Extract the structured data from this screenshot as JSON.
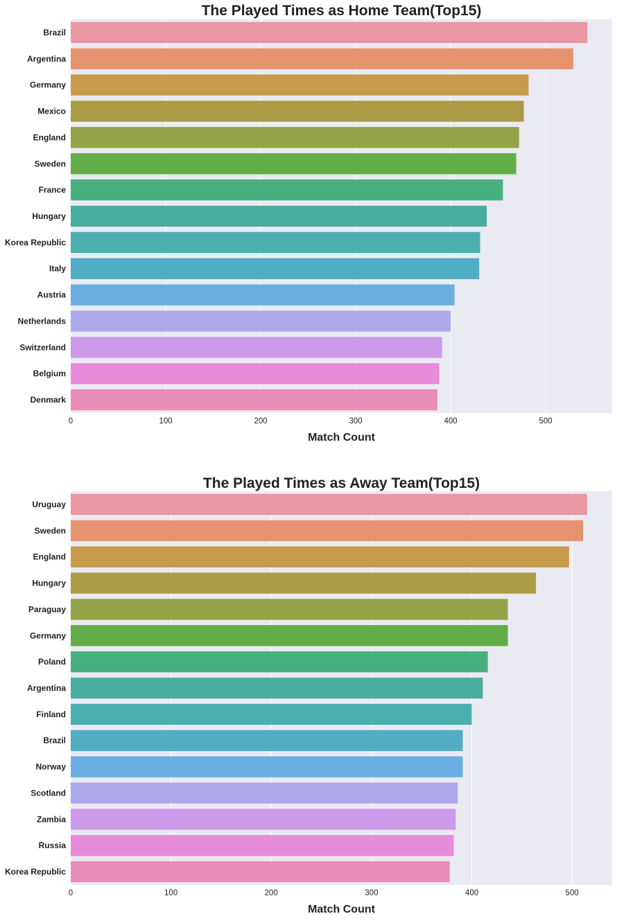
{
  "chart_data": [
    {
      "type": "bar",
      "orientation": "horizontal",
      "title": "The Played Times as Home Team(Top15)",
      "xlabel": "Match Count",
      "ylabel": "",
      "xlim": [
        0,
        570
      ],
      "xticks": [
        "0",
        "100",
        "200",
        "300",
        "400",
        "500"
      ],
      "grid": true,
      "categories": [
        "Brazil",
        "Argentina",
        "Germany",
        "Mexico",
        "England",
        "Sweden",
        "France",
        "Hungary",
        "Korea Republic",
        "Italy",
        "Austria",
        "Netherlands",
        "Switzerland",
        "Belgium",
        "Denmark"
      ],
      "values": [
        544,
        529,
        482,
        477,
        472,
        469,
        455,
        438,
        431,
        430,
        404,
        400,
        391,
        388,
        386
      ],
      "colors": [
        "#ea96a3",
        "#e5936f",
        "#c89a4b",
        "#ac9b46",
        "#93a448",
        "#62ad48",
        "#48af7f",
        "#4aae9f",
        "#4caeaf",
        "#51adc3",
        "#6aaee1",
        "#ada9ea",
        "#cd9aea",
        "#e88cd9",
        "#e98db9"
      ]
    },
    {
      "type": "bar",
      "orientation": "horizontal",
      "title": "The Played Times as Away Team(Top15)",
      "xlabel": "Match Count",
      "ylabel": "",
      "xlim": [
        0,
        540
      ],
      "xticks": [
        "0",
        "100",
        "200",
        "300",
        "400",
        "500"
      ],
      "grid": true,
      "categories": [
        "Uruguay",
        "Sweden",
        "England",
        "Hungary",
        "Paraguay",
        "Germany",
        "Poland",
        "Argentina",
        "Finland",
        "Brazil",
        "Norway",
        "Scotland",
        "Zambia",
        "Russia",
        "Korea Republic"
      ],
      "values": [
        515,
        511,
        497,
        464,
        436,
        436,
        416,
        411,
        400,
        391,
        391,
        386,
        384,
        382,
        378
      ],
      "colors": [
        "#ea96a3",
        "#e5936f",
        "#c89a4b",
        "#ac9b46",
        "#93a448",
        "#62ad48",
        "#48af7f",
        "#4aae9f",
        "#4caeaf",
        "#51adc3",
        "#6aaee1",
        "#ada9ea",
        "#cd9aea",
        "#e88cd9",
        "#e98db9"
      ]
    }
  ]
}
